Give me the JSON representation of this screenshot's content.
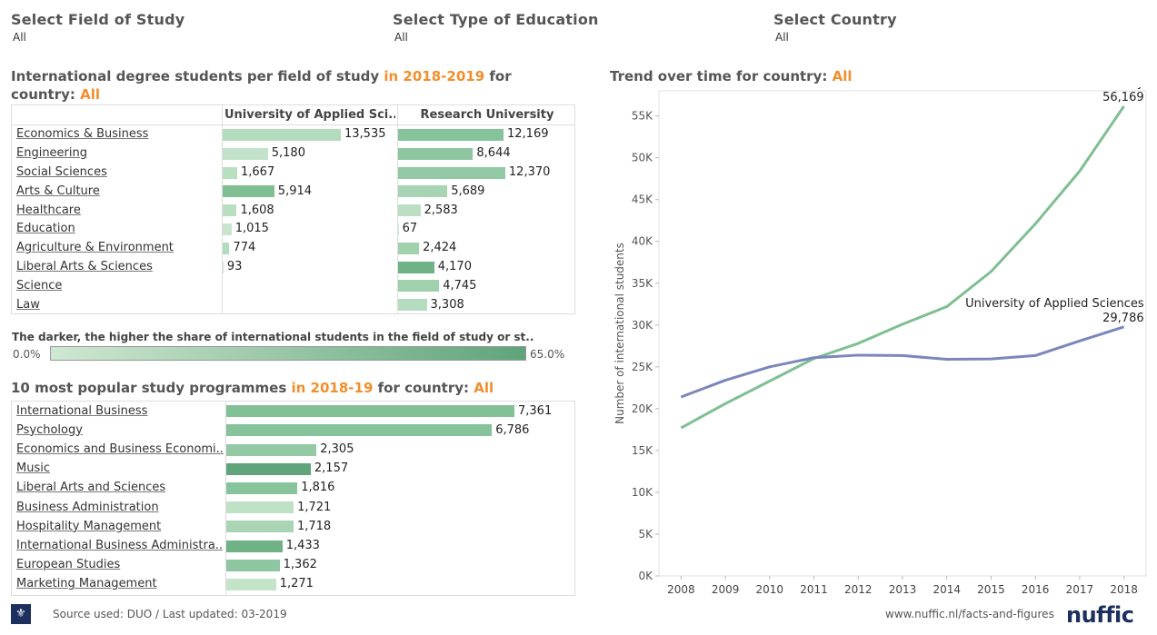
{
  "filters": [
    {
      "title": "Select Field of Study",
      "value": "All"
    },
    {
      "title": "Select Type of Education",
      "value": "All"
    },
    {
      "title": "Select Country",
      "value": "All"
    }
  ],
  "fields_section": {
    "title_prefix": "International degree students per field of study",
    "title_year": "in 2018-2019",
    "title_mid": "for",
    "title_country_label": "country:",
    "title_country": "All"
  },
  "programmes_section": {
    "title_prefix": "10 most popular study programmes",
    "title_year": "in 2018-19",
    "title_mid": "for country:",
    "title_country": "All"
  },
  "trend_section": {
    "title_prefix": "Trend over time for country:",
    "title_country": "All"
  },
  "legend": {
    "title": "The darker, the higher the share of international students in the field of study or st..",
    "min": "0.0%",
    "max": "65.0%",
    "color_min": "#cfe8d2",
    "color_max": "#5fa47a"
  },
  "footer": {
    "source": "Source used: DUO / Last updated: 03-2019",
    "url": "www.nuffic.nl/facts-and-figures",
    "brand": "nuffic"
  },
  "chart_data": [
    {
      "type": "bar",
      "columns": [
        "University of Applied Sci..",
        "Research University"
      ],
      "categories": [
        "Economics & Business",
        "Engineering",
        "Social Sciences",
        "Arts & Culture",
        "Healthcare",
        "Education",
        "Agriculture & Environment",
        "Liberal Arts & Sciences",
        "Science",
        "Law"
      ],
      "series": [
        {
          "values": [
            13535,
            5180,
            1667,
            5914,
            1608,
            1015,
            774,
            93,
            null,
            null
          ],
          "labels": [
            "13,535",
            "5,180",
            "1,667",
            "5,914",
            "1,608",
            "1,015",
            "774",
            "93",
            "",
            ""
          ],
          "colors": [
            "#b3dcbc",
            "#c2e3c9",
            "#b8dfc0",
            "#7fbf92",
            "#b8dfc0",
            "#c8e6cd",
            "#b3dcbc",
            "#cfe8d2",
            "",
            ""
          ]
        },
        {
          "values": [
            12169,
            8644,
            12370,
            5689,
            2583,
            67,
            2424,
            4170,
            4745,
            3308
          ],
          "labels": [
            "12,169",
            "8,644",
            "12,370",
            "5,689",
            "2,583",
            "67",
            "2,424",
            "4,170",
            "4,745",
            "3,308"
          ],
          "colors": [
            "#86c29a",
            "#8dc6a0",
            "#93c9a5",
            "#a7d4b3",
            "#bcdfc4",
            "#cfe8d2",
            "#a2d1ae",
            "#6fb285",
            "#a0d0ac",
            "#b6dcbf"
          ]
        }
      ]
    },
    {
      "type": "bar",
      "categories": [
        "International Business",
        "Psychology",
        "Economics and Business Economi..",
        "Music",
        "Liberal Arts and Sciences",
        "Business Administration",
        "Hospitality Management",
        "International Business Administra..",
        "European Studies",
        "Marketing Management"
      ],
      "values": [
        7361,
        6786,
        2305,
        2157,
        1816,
        1721,
        1718,
        1433,
        1362,
        1271
      ],
      "labels": [
        "7,361",
        "6,786",
        "2,305",
        "2,157",
        "1,816",
        "1,721",
        "1,718",
        "1,433",
        "1,362",
        "1,271"
      ],
      "colors": [
        "#82c196",
        "#86c29a",
        "#93c9a5",
        "#5fa47a",
        "#88c49b",
        "#bfe1c6",
        "#a9d5b4",
        "#6fb285",
        "#8dc6a0",
        "#c4e4ca"
      ]
    },
    {
      "type": "line",
      "x": [
        2008,
        2009,
        2010,
        2011,
        2012,
        2013,
        2014,
        2015,
        2016,
        2017,
        2018
      ],
      "ylabel": "Number of international students",
      "ylim": [
        0,
        58000
      ],
      "yticks": [
        0,
        5000,
        10000,
        15000,
        20000,
        25000,
        30000,
        35000,
        40000,
        45000,
        50000,
        55000
      ],
      "ytick_labels": [
        "0K",
        "5K",
        "10K",
        "15K",
        "20K",
        "25K",
        "30K",
        "35K",
        "40K",
        "45K",
        "50K",
        "55K"
      ],
      "series": [
        {
          "name": "Research University",
          "end_label": "56,169",
          "color": "#7fbf92",
          "values": [
            17700,
            20600,
            23300,
            26000,
            27800,
            30100,
            32200,
            36400,
            42100,
            48400,
            56169
          ]
        },
        {
          "name": "University of Applied Sciences",
          "end_label": "29,786",
          "color": "#7b86bb",
          "values": [
            21400,
            23400,
            25000,
            26100,
            26400,
            26350,
            25900,
            25950,
            26350,
            28100,
            29786
          ]
        }
      ]
    }
  ]
}
